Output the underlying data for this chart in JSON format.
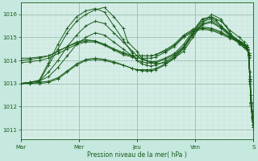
{
  "background_color": "#c5e8df",
  "plot_bg_color": "#d4eee6",
  "line_color": "#1a5c1a",
  "xlabel": "Pression niveau de la mer( hPa )",
  "ylim": [
    1010.6,
    1016.5
  ],
  "yticks": [
    1011,
    1012,
    1013,
    1014,
    1015,
    1016
  ],
  "xtick_labels": [
    "Mar",
    "Mer",
    "Jeu",
    "Ven",
    "S"
  ],
  "xtick_positions": [
    0,
    0.25,
    0.5,
    0.75,
    1.0
  ],
  "series": [
    {
      "points": [
        [
          0,
          1013.0
        ],
        [
          0.04,
          1013.05
        ],
        [
          0.08,
          1013.1
        ],
        [
          0.12,
          1013.8
        ],
        [
          0.16,
          1014.5
        ],
        [
          0.2,
          1015.2
        ],
        [
          0.24,
          1015.7
        ],
        [
          0.28,
          1016.0
        ],
        [
          0.32,
          1016.2
        ],
        [
          0.36,
          1016.3
        ],
        [
          0.4,
          1015.9
        ],
        [
          0.44,
          1015.4
        ],
        [
          0.46,
          1014.8
        ],
        [
          0.5,
          1014.4
        ],
        [
          0.52,
          1014.1
        ],
        [
          0.54,
          1014.0
        ],
        [
          0.56,
          1013.9
        ],
        [
          0.58,
          1013.85
        ],
        [
          0.62,
          1013.9
        ],
        [
          0.66,
          1014.1
        ],
        [
          0.7,
          1014.4
        ],
        [
          0.74,
          1015.0
        ],
        [
          0.78,
          1015.6
        ],
        [
          0.82,
          1016.0
        ],
        [
          0.86,
          1015.8
        ],
        [
          0.88,
          1015.5
        ],
        [
          0.9,
          1015.2
        ],
        [
          0.92,
          1014.9
        ],
        [
          0.94,
          1014.7
        ],
        [
          0.96,
          1014.55
        ],
        [
          0.97,
          1014.5
        ],
        [
          0.975,
          1014.45
        ],
        [
          0.98,
          1014.3
        ],
        [
          0.985,
          1013.5
        ],
        [
          0.99,
          1012.5
        ],
        [
          0.995,
          1011.8
        ],
        [
          1.0,
          1011.3
        ]
      ]
    },
    {
      "points": [
        [
          0,
          1013.0
        ],
        [
          0.04,
          1013.05
        ],
        [
          0.08,
          1013.15
        ],
        [
          0.12,
          1013.9
        ],
        [
          0.16,
          1014.7
        ],
        [
          0.2,
          1015.4
        ],
        [
          0.24,
          1015.9
        ],
        [
          0.28,
          1016.15
        ],
        [
          0.32,
          1016.25
        ],
        [
          0.36,
          1016.1
        ],
        [
          0.4,
          1015.5
        ],
        [
          0.44,
          1014.9
        ],
        [
          0.48,
          1014.3
        ],
        [
          0.5,
          1014.0
        ],
        [
          0.52,
          1013.85
        ],
        [
          0.54,
          1013.8
        ],
        [
          0.56,
          1013.75
        ],
        [
          0.58,
          1013.8
        ],
        [
          0.62,
          1013.95
        ],
        [
          0.66,
          1014.2
        ],
        [
          0.7,
          1014.6
        ],
        [
          0.74,
          1015.2
        ],
        [
          0.78,
          1015.8
        ],
        [
          0.82,
          1015.9
        ],
        [
          0.86,
          1015.7
        ],
        [
          0.9,
          1015.3
        ],
        [
          0.94,
          1015.0
        ],
        [
          0.96,
          1014.8
        ],
        [
          0.97,
          1014.6
        ],
        [
          0.975,
          1014.5
        ],
        [
          0.98,
          1014.3
        ],
        [
          0.985,
          1013.3
        ],
        [
          0.99,
          1012.2
        ],
        [
          0.995,
          1011.5
        ],
        [
          1.0,
          1011.1
        ]
      ]
    },
    {
      "points": [
        [
          0,
          1013.0
        ],
        [
          0.04,
          1013.05
        ],
        [
          0.08,
          1013.1
        ],
        [
          0.12,
          1013.5
        ],
        [
          0.16,
          1014.0
        ],
        [
          0.2,
          1014.6
        ],
        [
          0.24,
          1015.1
        ],
        [
          0.28,
          1015.5
        ],
        [
          0.32,
          1015.7
        ],
        [
          0.36,
          1015.6
        ],
        [
          0.4,
          1015.2
        ],
        [
          0.44,
          1014.8
        ],
        [
          0.48,
          1014.4
        ],
        [
          0.5,
          1014.2
        ],
        [
          0.52,
          1014.05
        ],
        [
          0.54,
          1014.0
        ],
        [
          0.56,
          1013.95
        ],
        [
          0.58,
          1013.95
        ],
        [
          0.62,
          1014.1
        ],
        [
          0.66,
          1014.3
        ],
        [
          0.7,
          1014.7
        ],
        [
          0.74,
          1015.3
        ],
        [
          0.78,
          1015.8
        ],
        [
          0.82,
          1015.85
        ],
        [
          0.84,
          1015.75
        ],
        [
          0.86,
          1015.5
        ],
        [
          0.9,
          1015.15
        ],
        [
          0.94,
          1014.85
        ],
        [
          0.97,
          1014.6
        ],
        [
          0.975,
          1014.5
        ],
        [
          0.98,
          1014.2
        ],
        [
          0.985,
          1013.2
        ],
        [
          0.99,
          1012.1
        ],
        [
          0.995,
          1011.5
        ],
        [
          1.0,
          1011.1
        ]
      ]
    },
    {
      "points": [
        [
          0,
          1013.0
        ],
        [
          0.04,
          1013.05
        ],
        [
          0.08,
          1013.1
        ],
        [
          0.12,
          1013.3
        ],
        [
          0.16,
          1013.7
        ],
        [
          0.2,
          1014.2
        ],
        [
          0.24,
          1014.7
        ],
        [
          0.28,
          1015.0
        ],
        [
          0.32,
          1015.2
        ],
        [
          0.36,
          1015.1
        ],
        [
          0.4,
          1014.8
        ],
        [
          0.44,
          1014.5
        ],
        [
          0.48,
          1014.2
        ],
        [
          0.5,
          1014.0
        ],
        [
          0.52,
          1013.95
        ],
        [
          0.54,
          1013.9
        ],
        [
          0.56,
          1013.9
        ],
        [
          0.58,
          1013.9
        ],
        [
          0.62,
          1014.05
        ],
        [
          0.66,
          1014.25
        ],
        [
          0.7,
          1014.6
        ],
        [
          0.74,
          1015.2
        ],
        [
          0.78,
          1015.7
        ],
        [
          0.82,
          1015.8
        ],
        [
          0.86,
          1015.5
        ],
        [
          0.9,
          1015.1
        ],
        [
          0.94,
          1014.8
        ],
        [
          0.97,
          1014.55
        ],
        [
          0.975,
          1014.45
        ],
        [
          0.98,
          1014.1
        ],
        [
          0.985,
          1013.0
        ],
        [
          0.99,
          1012.0
        ],
        [
          0.995,
          1011.4
        ],
        [
          1.0,
          1011.1
        ]
      ]
    },
    {
      "points": [
        [
          0,
          1013.0
        ],
        [
          0.04,
          1013.0
        ],
        [
          0.08,
          1013.0
        ],
        [
          0.12,
          1013.05
        ],
        [
          0.16,
          1013.2
        ],
        [
          0.2,
          1013.5
        ],
        [
          0.24,
          1013.8
        ],
        [
          0.28,
          1014.0
        ],
        [
          0.32,
          1014.05
        ],
        [
          0.36,
          1014.0
        ],
        [
          0.4,
          1013.9
        ],
        [
          0.44,
          1013.8
        ],
        [
          0.48,
          1013.65
        ],
        [
          0.5,
          1013.6
        ],
        [
          0.52,
          1013.55
        ],
        [
          0.54,
          1013.55
        ],
        [
          0.56,
          1013.55
        ],
        [
          0.58,
          1013.6
        ],
        [
          0.62,
          1013.8
        ],
        [
          0.66,
          1014.1
        ],
        [
          0.7,
          1014.5
        ],
        [
          0.74,
          1015.1
        ],
        [
          0.78,
          1015.55
        ],
        [
          0.82,
          1015.65
        ],
        [
          0.86,
          1015.4
        ],
        [
          0.9,
          1015.05
        ],
        [
          0.94,
          1014.75
        ],
        [
          0.97,
          1014.5
        ],
        [
          0.975,
          1014.45
        ],
        [
          0.98,
          1014.15
        ],
        [
          0.985,
          1013.1
        ],
        [
          0.99,
          1012.1
        ],
        [
          0.995,
          1011.5
        ],
        [
          1.0,
          1011.2
        ]
      ]
    },
    {
      "points": [
        [
          0,
          1013.0
        ],
        [
          0.04,
          1013.0
        ],
        [
          0.08,
          1013.05
        ],
        [
          0.12,
          1013.1
        ],
        [
          0.16,
          1013.25
        ],
        [
          0.2,
          1013.55
        ],
        [
          0.24,
          1013.85
        ],
        [
          0.28,
          1014.05
        ],
        [
          0.32,
          1014.1
        ],
        [
          0.36,
          1014.05
        ],
        [
          0.4,
          1013.95
        ],
        [
          0.44,
          1013.8
        ],
        [
          0.48,
          1013.65
        ],
        [
          0.5,
          1013.6
        ],
        [
          0.52,
          1013.6
        ],
        [
          0.54,
          1013.6
        ],
        [
          0.56,
          1013.6
        ],
        [
          0.58,
          1013.65
        ],
        [
          0.62,
          1013.85
        ],
        [
          0.66,
          1014.15
        ],
        [
          0.7,
          1014.55
        ],
        [
          0.74,
          1015.15
        ],
        [
          0.78,
          1015.6
        ],
        [
          0.82,
          1015.7
        ],
        [
          0.86,
          1015.45
        ],
        [
          0.9,
          1015.1
        ],
        [
          0.94,
          1014.8
        ],
        [
          0.97,
          1014.55
        ],
        [
          0.975,
          1014.5
        ],
        [
          0.98,
          1014.2
        ],
        [
          0.985,
          1013.15
        ],
        [
          0.99,
          1012.15
        ],
        [
          0.995,
          1011.55
        ],
        [
          1.0,
          1011.2
        ]
      ]
    },
    {
      "points": [
        [
          0,
          1014.0
        ],
        [
          0.04,
          1014.05
        ],
        [
          0.08,
          1014.1
        ],
        [
          0.12,
          1014.2
        ],
        [
          0.16,
          1014.4
        ],
        [
          0.2,
          1014.6
        ],
        [
          0.24,
          1014.8
        ],
        [
          0.28,
          1014.9
        ],
        [
          0.32,
          1014.85
        ],
        [
          0.36,
          1014.7
        ],
        [
          0.4,
          1014.5
        ],
        [
          0.44,
          1014.3
        ],
        [
          0.48,
          1014.2
        ],
        [
          0.5,
          1014.2
        ],
        [
          0.52,
          1014.2
        ],
        [
          0.54,
          1014.2
        ],
        [
          0.56,
          1014.2
        ],
        [
          0.58,
          1014.25
        ],
        [
          0.62,
          1014.4
        ],
        [
          0.66,
          1014.65
        ],
        [
          0.7,
          1015.05
        ],
        [
          0.74,
          1015.3
        ],
        [
          0.78,
          1015.4
        ],
        [
          0.82,
          1015.35
        ],
        [
          0.86,
          1015.2
        ],
        [
          0.9,
          1015.0
        ],
        [
          0.94,
          1014.85
        ],
        [
          0.97,
          1014.65
        ],
        [
          0.975,
          1014.55
        ],
        [
          0.98,
          1014.2
        ],
        [
          0.985,
          1013.1
        ],
        [
          0.99,
          1012.15
        ],
        [
          0.995,
          1011.55
        ],
        [
          1.0,
          1011.2
        ]
      ]
    },
    {
      "points": [
        [
          0,
          1014.1
        ],
        [
          0.04,
          1014.1
        ],
        [
          0.08,
          1014.15
        ],
        [
          0.12,
          1014.2
        ],
        [
          0.16,
          1014.4
        ],
        [
          0.2,
          1014.6
        ],
        [
          0.24,
          1014.75
        ],
        [
          0.28,
          1014.85
        ],
        [
          0.32,
          1014.85
        ],
        [
          0.36,
          1014.7
        ],
        [
          0.4,
          1014.5
        ],
        [
          0.44,
          1014.35
        ],
        [
          0.48,
          1014.2
        ],
        [
          0.5,
          1014.2
        ],
        [
          0.52,
          1014.2
        ],
        [
          0.54,
          1014.2
        ],
        [
          0.56,
          1014.2
        ],
        [
          0.58,
          1014.25
        ],
        [
          0.62,
          1014.45
        ],
        [
          0.66,
          1014.7
        ],
        [
          0.7,
          1015.1
        ],
        [
          0.74,
          1015.35
        ],
        [
          0.78,
          1015.45
        ],
        [
          0.82,
          1015.4
        ],
        [
          0.86,
          1015.25
        ],
        [
          0.9,
          1015.0
        ],
        [
          0.94,
          1014.85
        ],
        [
          0.97,
          1014.65
        ],
        [
          0.975,
          1014.55
        ],
        [
          0.98,
          1014.25
        ],
        [
          0.985,
          1013.2
        ],
        [
          0.99,
          1012.2
        ],
        [
          0.995,
          1011.6
        ],
        [
          1.0,
          1011.2
        ]
      ]
    },
    {
      "points": [
        [
          0,
          1013.9
        ],
        [
          0.04,
          1013.95
        ],
        [
          0.08,
          1014.0
        ],
        [
          0.12,
          1014.1
        ],
        [
          0.16,
          1014.3
        ],
        [
          0.2,
          1014.5
        ],
        [
          0.24,
          1014.7
        ],
        [
          0.28,
          1014.8
        ],
        [
          0.32,
          1014.8
        ],
        [
          0.36,
          1014.65
        ],
        [
          0.4,
          1014.45
        ],
        [
          0.44,
          1014.25
        ],
        [
          0.48,
          1014.15
        ],
        [
          0.5,
          1014.1
        ],
        [
          0.52,
          1014.1
        ],
        [
          0.54,
          1014.1
        ],
        [
          0.56,
          1014.1
        ],
        [
          0.58,
          1014.15
        ],
        [
          0.62,
          1014.35
        ],
        [
          0.66,
          1014.6
        ],
        [
          0.7,
          1015.0
        ],
        [
          0.74,
          1015.25
        ],
        [
          0.78,
          1015.35
        ],
        [
          0.82,
          1015.3
        ],
        [
          0.86,
          1015.15
        ],
        [
          0.9,
          1014.95
        ],
        [
          0.94,
          1014.8
        ],
        [
          0.97,
          1014.6
        ],
        [
          0.975,
          1014.5
        ],
        [
          0.98,
          1014.2
        ],
        [
          0.985,
          1013.1
        ],
        [
          0.99,
          1012.15
        ],
        [
          0.995,
          1011.55
        ],
        [
          1.0,
          1011.2
        ]
      ]
    }
  ]
}
